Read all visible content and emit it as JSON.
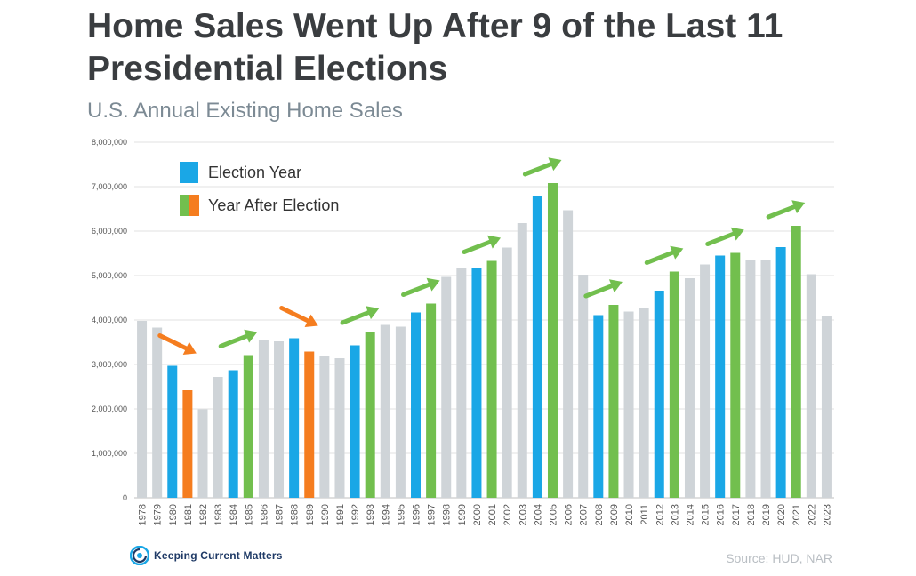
{
  "header": {
    "title_line1": "Home Sales Went Up After 9 of the Last 11",
    "title_line2": "Presidential Elections",
    "subtitle": "U.S. Annual Existing Home Sales"
  },
  "footer": {
    "logo_text": "Keeping Current Matters",
    "source": "Source: HUD, NAR"
  },
  "colors": {
    "election": "#1aa7e6",
    "after_up": "#72bf4e",
    "after_down": "#f57d1f",
    "other": "#cfd4d8",
    "grid": "#e2e2e2",
    "axis_text": "#555555"
  },
  "chart_data": {
    "type": "bar",
    "title": "Home Sales Went Up After 9 of the Last 11 Presidential Elections",
    "subtitle": "U.S. Annual Existing Home Sales",
    "categories": [
      "1978",
      "1979",
      "1980",
      "1981",
      "1982",
      "1983",
      "1984",
      "1985",
      "1986",
      "1987",
      "1988",
      "1989",
      "1990",
      "1991",
      "1992",
      "1993",
      "1994",
      "1995",
      "1996",
      "1997",
      "1998",
      "1999",
      "2000",
      "2001",
      "2002",
      "2003",
      "2004",
      "2005",
      "2006",
      "2007",
      "2008",
      "2009",
      "2010",
      "2011",
      "2012",
      "2013",
      "2014",
      "2015",
      "2016",
      "2017",
      "2018",
      "2019",
      "2020",
      "2021",
      "2022",
      "2023"
    ],
    "values": [
      3980000,
      3830000,
      2970000,
      2420000,
      1990000,
      2720000,
      2870000,
      3210000,
      3560000,
      3520000,
      3590000,
      3290000,
      3190000,
      3140000,
      3430000,
      3740000,
      3890000,
      3850000,
      4170000,
      4370000,
      4970000,
      5180000,
      5170000,
      5330000,
      5630000,
      6180000,
      6780000,
      7080000,
      6470000,
      5020000,
      4110000,
      4340000,
      4190000,
      4260000,
      4660000,
      5090000,
      4940000,
      5250000,
      5450000,
      5510000,
      5340000,
      5340000,
      5640000,
      6120000,
      5030000,
      4090000
    ],
    "bar_kind": [
      "other",
      "other",
      "election",
      "after_down",
      "other",
      "other",
      "election",
      "after_up",
      "other",
      "other",
      "election",
      "after_down",
      "other",
      "other",
      "election",
      "after_up",
      "other",
      "other",
      "election",
      "after_up",
      "other",
      "other",
      "election",
      "after_up",
      "other",
      "other",
      "election",
      "after_up",
      "other",
      "other",
      "election",
      "after_up",
      "other",
      "other",
      "election",
      "after_up",
      "other",
      "other",
      "election",
      "after_up",
      "other",
      "other",
      "election",
      "after_up",
      "other",
      "other"
    ],
    "legend": [
      {
        "label": "Election Year",
        "swatch": [
          "election"
        ]
      },
      {
        "label": "Year After Election",
        "swatch": [
          "after_up",
          "after_down"
        ]
      }
    ],
    "legend_position": "top-left",
    "ylim": [
      0,
      8000000
    ],
    "yticks": [
      "0",
      "1,000,000",
      "2,000,000",
      "3,000,000",
      "4,000,000",
      "5,000,000",
      "6,000,000",
      "7,000,000",
      "8,000,000"
    ],
    "ytick_values": [
      0,
      1000000,
      2000000,
      3000000,
      4000000,
      5000000,
      6000000,
      7000000,
      8000000
    ],
    "xlabel": "",
    "ylabel": "",
    "grid": true,
    "trend_arrows": [
      {
        "from": "1980",
        "to": "1981",
        "direction": "down"
      },
      {
        "from": "1984",
        "to": "1985",
        "direction": "up"
      },
      {
        "from": "1988",
        "to": "1989",
        "direction": "down"
      },
      {
        "from": "1992",
        "to": "1993",
        "direction": "up"
      },
      {
        "from": "1996",
        "to": "1997",
        "direction": "up"
      },
      {
        "from": "2000",
        "to": "2001",
        "direction": "up"
      },
      {
        "from": "2004",
        "to": "2005",
        "direction": "up"
      },
      {
        "from": "2008",
        "to": "2009",
        "direction": "up"
      },
      {
        "from": "2012",
        "to": "2013",
        "direction": "up"
      },
      {
        "from": "2016",
        "to": "2017",
        "direction": "up"
      },
      {
        "from": "2020",
        "to": "2021",
        "direction": "up"
      }
    ]
  }
}
